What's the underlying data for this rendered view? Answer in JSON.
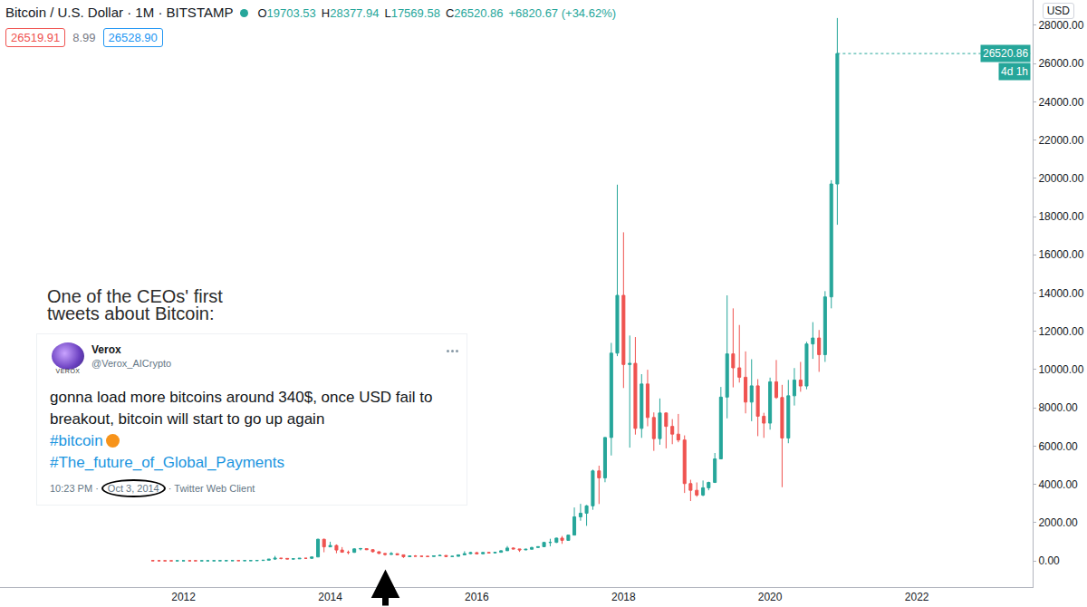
{
  "chart_data": {
    "type": "candlestick",
    "title": "Bitcoin / U.S. Dollar · 1M · BITSTAMP",
    "x": [
      "2011-08",
      "2011-09",
      "2011-10",
      "2011-11",
      "2011-12",
      "2012-01",
      "2012-02",
      "2012-03",
      "2012-04",
      "2012-05",
      "2012-06",
      "2012-07",
      "2012-08",
      "2012-09",
      "2012-10",
      "2012-11",
      "2012-12",
      "2013-01",
      "2013-02",
      "2013-03",
      "2013-04",
      "2013-05",
      "2013-06",
      "2013-07",
      "2013-08",
      "2013-09",
      "2013-10",
      "2013-11",
      "2013-12",
      "2014-01",
      "2014-02",
      "2014-03",
      "2014-04",
      "2014-05",
      "2014-06",
      "2014-07",
      "2014-08",
      "2014-09",
      "2014-10",
      "2014-11",
      "2014-12",
      "2015-01",
      "2015-02",
      "2015-03",
      "2015-04",
      "2015-05",
      "2015-06",
      "2015-07",
      "2015-08",
      "2015-09",
      "2015-10",
      "2015-11",
      "2015-12",
      "2016-01",
      "2016-02",
      "2016-03",
      "2016-04",
      "2016-05",
      "2016-06",
      "2016-07",
      "2016-08",
      "2016-09",
      "2016-10",
      "2016-11",
      "2016-12",
      "2017-01",
      "2017-02",
      "2017-03",
      "2017-04",
      "2017-05",
      "2017-06",
      "2017-07",
      "2017-08",
      "2017-09",
      "2017-10",
      "2017-11",
      "2017-12",
      "2018-01",
      "2018-02",
      "2018-03",
      "2018-04",
      "2018-05",
      "2018-06",
      "2018-07",
      "2018-08",
      "2018-09",
      "2018-10",
      "2018-11",
      "2018-12",
      "2019-01",
      "2019-02",
      "2019-03",
      "2019-04",
      "2019-05",
      "2019-06",
      "2019-07",
      "2019-08",
      "2019-09",
      "2019-10",
      "2019-11",
      "2019-12",
      "2020-01",
      "2020-02",
      "2020-03",
      "2020-04",
      "2020-05",
      "2020-06",
      "2020-07",
      "2020-08",
      "2020-09",
      "2020-10",
      "2020-11",
      "2020-12"
    ],
    "open": [
      10.9,
      8.2,
      5.1,
      3.2,
      3.0,
      4.7,
      5.5,
      4.9,
      4.9,
      5.0,
      5.1,
      6.6,
      9.2,
      10.2,
      12.4,
      11.1,
      12.5,
      13.5,
      20.4,
      33.4,
      93,
      139,
      129,
      97,
      106,
      135,
      133,
      203,
      1129,
      732,
      803,
      566,
      450,
      446,
      626,
      640,
      584,
      478,
      387,
      338,
      376,
      316,
      216,
      254,
      244,
      236,
      230,
      264,
      284,
      230,
      236,
      314,
      377,
      430,
      369,
      437,
      416,
      448,
      530,
      672,
      624,
      573,
      608,
      698,
      742,
      966,
      968,
      1190,
      1072,
      1347,
      2300,
      2490,
      2875,
      4703,
      4338,
      6450,
      10860,
      13880,
      10265,
      10325,
      6925,
      9245,
      7495,
      6390,
      7730,
      7030,
      6625,
      6320,
      4040,
      3690,
      3440,
      3820,
      4100,
      5330,
      8560,
      10820,
      10090,
      9600,
      8300,
      9150,
      7560,
      7200,
      9360,
      8540,
      6420,
      8630,
      9450,
      9140,
      11340,
      11650,
      10780,
      13800,
      19703.53
    ],
    "high": [
      13.9,
      8.5,
      5.2,
      3.6,
      4.8,
      7.4,
      6.5,
      5.5,
      5.3,
      5.2,
      6.7,
      9.4,
      15.4,
      12.9,
      12.8,
      12.8,
      13.9,
      20.7,
      33.5,
      95,
      259,
      140,
      130,
      111,
      136,
      142,
      215,
      1163,
      1163,
      1000,
      860,
      720,
      540,
      660,
      680,
      650,
      600,
      490,
      412,
      460,
      385,
      318,
      270,
      300,
      260,
      250,
      268,
      318,
      288,
      247,
      335,
      502,
      468,
      462,
      444,
      440,
      465,
      553,
      775,
      703,
      625,
      628,
      735,
      755,
      975,
      1156,
      1210,
      1300,
      1360,
      2790,
      2980,
      2920,
      4770,
      4976,
      6470,
      11395,
      19666,
      17176,
      11780,
      11700,
      9760,
      9990,
      7760,
      8490,
      7760,
      7410,
      7680,
      6560,
      4240,
      4100,
      4200,
      4140,
      5640,
      9090,
      13880,
      13200,
      12330,
      10950,
      10540,
      9500,
      7740,
      9580,
      10500,
      9200,
      9460,
      10080,
      10400,
      11450,
      12480,
      12070,
      14100,
      19900,
      28377.94
    ],
    "low": [
      7.0,
      4.5,
      2.1,
      2.0,
      2.8,
      4.7,
      4.1,
      4.5,
      4.7,
      4.9,
      5.1,
      6.5,
      7.1,
      9.9,
      9.7,
      10.4,
      12.4,
      13.3,
      19.3,
      33.1,
      50,
      79,
      89,
      65,
      101,
      118,
      105,
      200,
      450,
      730,
      400,
      440,
      340,
      420,
      545,
      565,
      440,
      360,
      275,
      315,
      300,
      152,
      210,
      235,
      210,
      225,
      217,
      254,
      198,
      226,
      236,
      300,
      346,
      353,
      366,
      393,
      412,
      437,
      528,
      606,
      470,
      566,
      604,
      682,
      740,
      758,
      932,
      890,
      1059,
      1347,
      2100,
      1830,
      2670,
      2972,
      4110,
      5508,
      10700,
      9035,
      5920,
      6600,
      6430,
      7035,
      5750,
      6070,
      5880,
      6100,
      6200,
      3550,
      3128,
      3350,
      3380,
      3690,
      4070,
      5330,
      7450,
      9070,
      9320,
      7710,
      7300,
      6520,
      6430,
      6860,
      8470,
      3850,
      6150,
      8120,
      8840,
      8970,
      10560,
      9880,
      10400,
      13200,
      17569.58
    ],
    "close": [
      8.2,
      5.1,
      3.2,
      3.0,
      4.7,
      5.5,
      4.9,
      4.9,
      5.0,
      5.1,
      6.6,
      9.2,
      10.2,
      12.4,
      11.1,
      12.5,
      13.5,
      20.4,
      33.4,
      93,
      139,
      129,
      97,
      106,
      135,
      133,
      203,
      1129,
      732,
      803,
      566,
      450,
      446,
      626,
      640,
      584,
      478,
      387,
      338,
      376,
      316,
      216,
      254,
      244,
      236,
      230,
      264,
      284,
      230,
      236,
      314,
      377,
      430,
      369,
      437,
      416,
      448,
      530,
      672,
      624,
      573,
      608,
      698,
      742,
      966,
      968,
      1190,
      1072,
      1347,
      2300,
      2490,
      2875,
      4703,
      4338,
      6450,
      10860,
      13880,
      10265,
      10325,
      6925,
      9245,
      7495,
      6390,
      7730,
      7030,
      6625,
      6320,
      4040,
      3690,
      3440,
      3820,
      4100,
      5330,
      8560,
      10820,
      10090,
      9600,
      8300,
      9150,
      7560,
      7200,
      9360,
      8540,
      6420,
      8630,
      9450,
      9140,
      11340,
      11650,
      10780,
      13800,
      19703.53,
      26520.86
    ],
    "color": {
      "increasing": "#26a69a",
      "decreasing": "#ef5350"
    },
    "xlim": [
      "2009-07",
      "2023-08"
    ],
    "xticks": [
      "2012",
      "2014",
      "2016",
      "2018",
      "2020",
      "2022"
    ],
    "ylim": [
      -1370,
      29320
    ],
    "yticks": [
      {
        "value": 0,
        "label": "0.00"
      },
      {
        "value": 2000,
        "label": "2000.00"
      },
      {
        "value": 4000,
        "label": "4000.00"
      },
      {
        "value": 6000,
        "label": "6000.00"
      },
      {
        "value": 8000,
        "label": "8000.00"
      },
      {
        "value": 10000,
        "label": "10000.00"
      },
      {
        "value": 12000,
        "label": "12000.00"
      },
      {
        "value": 14000,
        "label": "14000.00"
      },
      {
        "value": 16000,
        "label": "16000.00"
      },
      {
        "value": 18000,
        "label": "18000.00"
      },
      {
        "value": 20000,
        "label": "20000.00"
      },
      {
        "value": 22000,
        "label": "22000.00"
      },
      {
        "value": 24000,
        "label": "24000.00"
      },
      {
        "value": 26000,
        "label": "26000.00"
      },
      {
        "value": 28000,
        "label": "28000.00"
      }
    ],
    "grid": false
  },
  "header": {
    "ohlc": [
      [
        "O",
        "19703.53"
      ],
      [
        "H",
        "28377.94"
      ],
      [
        "L",
        "17569.58"
      ],
      [
        "C",
        "26520.86"
      ]
    ],
    "change": "+6820.67 (+34.62%)",
    "bid": "26519.91",
    "spread": "8.99",
    "ask": "26528.90",
    "currency": "USD",
    "countdown": "4d 1h"
  },
  "tweet": {
    "caption": "One of the CEOs' first tweets about Bitcoin:",
    "avatar_text": "VEROX",
    "name": "Verox",
    "handle": "@Verox_AICrypto",
    "text": "gonna load more bitcoins around 340$, once USD fail to breakout, bitcoin will start to go up again",
    "hashtags": [
      "#bitcoin",
      "#The_future_of_Global_Payments"
    ],
    "footer": "10:23 PM · Oct 3, 2014 · Twitter Web Client",
    "date": "Oct 3, 2014"
  }
}
